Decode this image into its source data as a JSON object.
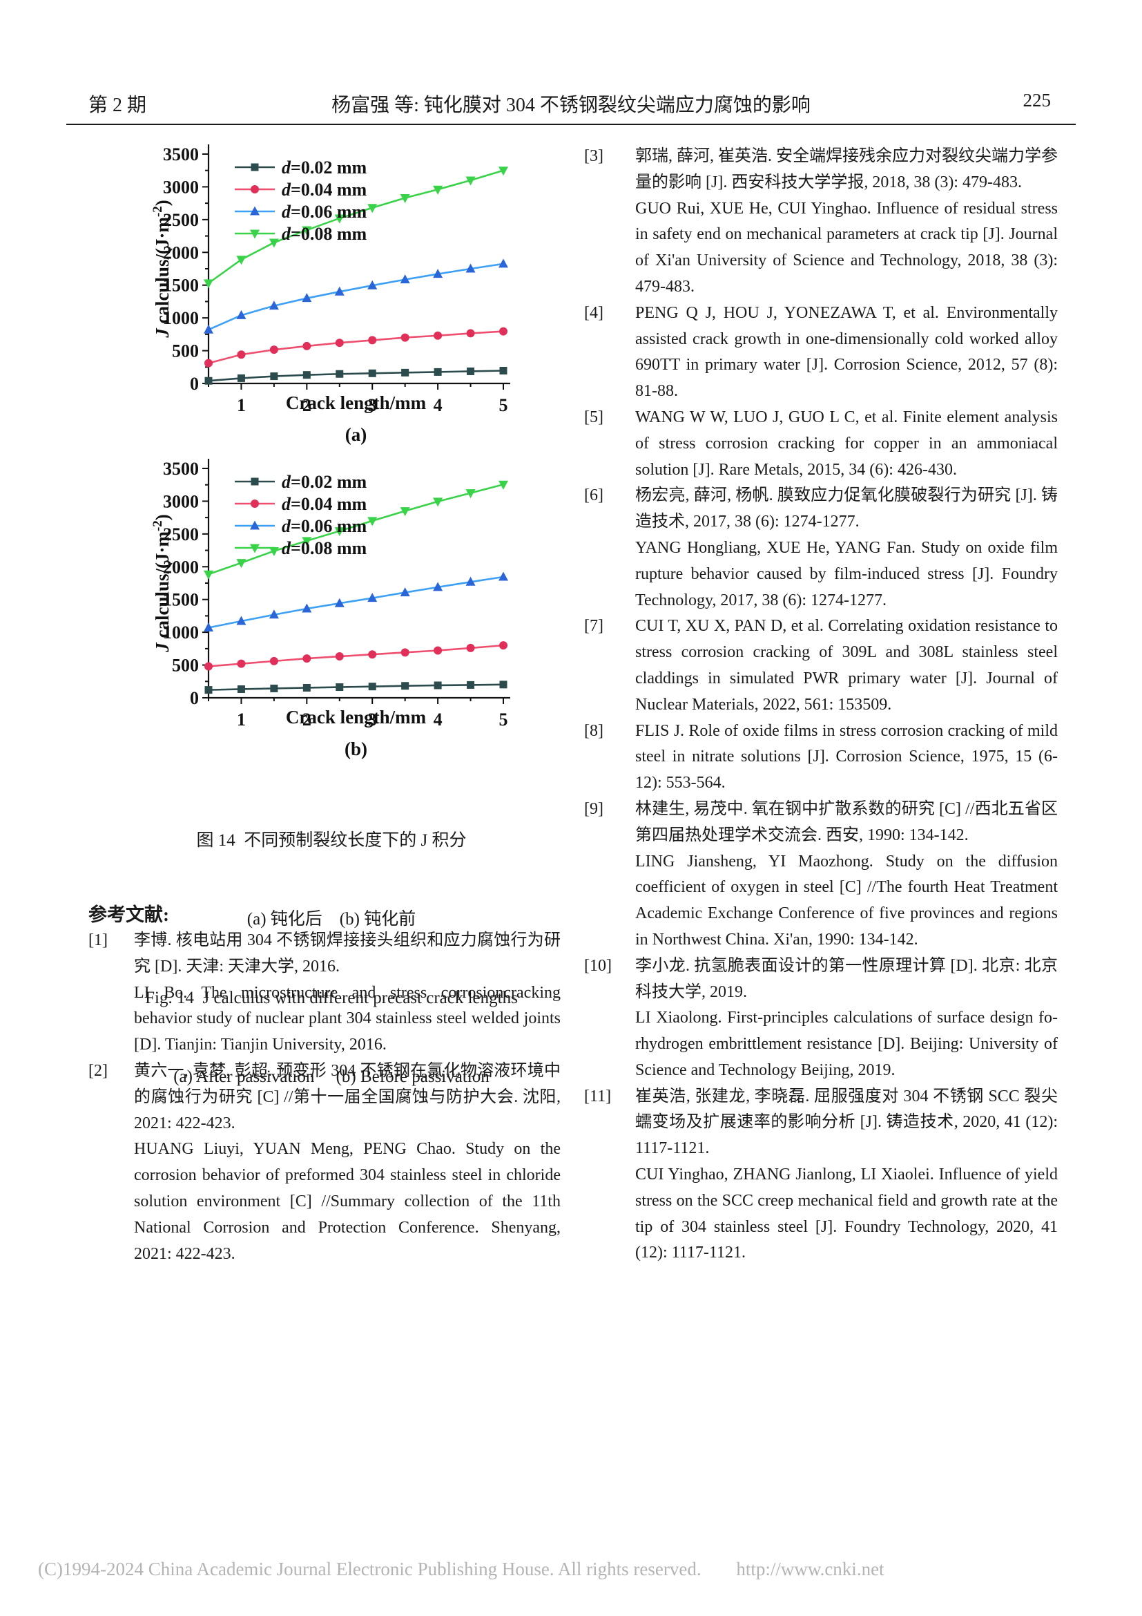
{
  "header": {
    "issue_label": "第 2 期",
    "running_title": "杨富强 等: 钝化膜对 304 不锈钢裂纹尖端应力腐蚀的影响",
    "page_number": "225"
  },
  "chart_data": [
    {
      "type": "line",
      "sub_label": "(a)",
      "xlabel": "Crack length/mm",
      "ylabel": "J calculus/(J·m⁻²)",
      "ylim": [
        0,
        3500
      ],
      "yticks": [
        0,
        500,
        1000,
        1500,
        2000,
        2500,
        3000,
        3500
      ],
      "xticks": [
        1,
        2,
        3,
        4,
        5
      ],
      "legend_position": "top-left",
      "grid": false,
      "x": [
        0.5,
        1,
        1.5,
        2,
        2.5,
        3,
        3.5,
        4,
        4.5,
        5
      ],
      "series": [
        {
          "name": "d=0.02 mm",
          "marker": "square",
          "color": "#2c4b4d",
          "line_color": "#2c4b4d",
          "values": [
            40,
            80,
            110,
            130,
            145,
            155,
            165,
            175,
            185,
            195
          ]
        },
        {
          "name": "d=0.04 mm",
          "marker": "circle",
          "color": "#e0305a",
          "line_color": "#ef4f6e",
          "values": [
            310,
            440,
            515,
            570,
            620,
            660,
            700,
            730,
            765,
            795
          ]
        },
        {
          "name": "d=0.06 mm",
          "marker": "triangle-up",
          "color": "#2b66d9",
          "line_color": "#3da0f5",
          "values": [
            820,
            1040,
            1185,
            1300,
            1400,
            1495,
            1585,
            1670,
            1750,
            1825
          ]
        },
        {
          "name": "d=0.08 mm",
          "marker": "triangle-down",
          "color": "#38d348",
          "line_color": "#38d348",
          "values": [
            1530,
            1890,
            2150,
            2340,
            2520,
            2680,
            2830,
            2960,
            3100,
            3250
          ]
        }
      ]
    },
    {
      "type": "line",
      "sub_label": "(b)",
      "xlabel": "Crack length/mm",
      "ylabel": "J calculus/(J·m⁻²)",
      "ylim": [
        0,
        3500
      ],
      "yticks": [
        0,
        500,
        1000,
        1500,
        2000,
        2500,
        3000,
        3500
      ],
      "xticks": [
        1,
        2,
        3,
        4,
        5
      ],
      "legend_position": "top-left",
      "grid": false,
      "x": [
        0.5,
        1,
        1.5,
        2,
        2.5,
        3,
        3.5,
        4,
        4.5,
        5
      ],
      "series": [
        {
          "name": "d=0.02 mm",
          "marker": "square",
          "color": "#2c4b4d",
          "line_color": "#2c4b4d",
          "values": [
            120,
            132,
            143,
            153,
            163,
            172,
            182,
            190,
            196,
            202
          ]
        },
        {
          "name": "d=0.04 mm",
          "marker": "circle",
          "color": "#e0305a",
          "line_color": "#ef4f6e",
          "values": [
            480,
            520,
            560,
            600,
            632,
            662,
            692,
            722,
            760,
            800
          ]
        },
        {
          "name": "d=0.06 mm",
          "marker": "triangle-up",
          "color": "#2b66d9",
          "line_color": "#3da0f5",
          "values": [
            1070,
            1170,
            1268,
            1360,
            1442,
            1522,
            1607,
            1688,
            1768,
            1845
          ]
        },
        {
          "name": "d=0.08 mm",
          "marker": "triangle-down",
          "color": "#38d348",
          "line_color": "#38d348",
          "values": [
            1885,
            2060,
            2240,
            2395,
            2545,
            2700,
            2850,
            2995,
            3125,
            3255
          ]
        }
      ]
    }
  ],
  "caption": {
    "zh_title": "图 14  不同预制裂纹长度下的 J 积分",
    "zh_sub": "(a) 钝化后    (b) 钝化前",
    "en_title": "Fig. 14  J calculus with different precast crack lengths",
    "en_sub": "(a) After passivation     (b) Before passivation"
  },
  "references": {
    "heading": "参考文献:",
    "left": [
      {
        "label": "[1]",
        "paras": [
          "李博. 核电站用 304 不锈钢焊接接头组织和应力腐蚀行为研究 [D]. 天津: 天津大学, 2016.",
          "LI Bo. The microstructure and stress corrosioncracking behavior study of nuclear plant 304 stainless steel welded joints [D]. Tianjin: Tianjin University, 2016."
        ]
      },
      {
        "label": "[2]",
        "paras": [
          "黄六一, 袁梦, 彭超. 预变形 304 不锈钢在氯化物溶液环境中的腐蚀行为研究 [C] //第十一届全国腐蚀与防护大会. 沈阳, 2021: 422-423.",
          "HUANG Liuyi, YUAN Meng, PENG Chao. Study on the corrosion behavior of preformed 304 stainless steel in chloride solution environment [C] //Summary collection of the 11th National Corrosion and Protection Conference. Shenyang, 2021: 422-423."
        ]
      }
    ],
    "right": [
      {
        "label": "[3]",
        "paras": [
          "郭瑞, 薛河, 崔英浩. 安全端焊接残余应力对裂纹尖端力学参量的影响 [J]. 西安科技大学学报, 2018, 38 (3): 479-483.",
          "GUO Rui, XUE He, CUI Yinghao. Influence of residual stress in safety end on mechanical parameters at crack tip [J]. Journal of Xi'an University of Science and Technology, 2018, 38 (3): 479-483."
        ]
      },
      {
        "label": "[4]",
        "paras": [
          "PENG Q J, HOU J, YONEZAWA T, et al. Environmentally assisted crack growth in one-dimensionally cold worked alloy 690TT in primary water [J]. Corrosion Science, 2012, 57 (8): 81-88."
        ]
      },
      {
        "label": "[5]",
        "paras": [
          "WANG W W, LUO J, GUO L C, et al. Finite element analysis of stress corrosion cracking for copper in an ammoniacal solution [J]. Rare Metals, 2015, 34 (6): 426-430."
        ]
      },
      {
        "label": "[6]",
        "paras": [
          "杨宏亮, 薛河, 杨帆. 膜致应力促氧化膜破裂行为研究 [J]. 铸造技术, 2017, 38 (6): 1274-1277.",
          "YANG Hongliang, XUE He, YANG Fan. Study on oxide film rupture behavior caused by film-induced stress [J]. Foundry Technology, 2017, 38 (6): 1274-1277."
        ]
      },
      {
        "label": "[7]",
        "paras": [
          "CUI T, XU X, PAN D, et al. Correlating oxidation resistance to stress corrosion cracking of 309L and 308L stainless steel claddings in simulated PWR primary water [J]. Journal of Nuclear Materials, 2022, 561: 153509."
        ]
      },
      {
        "label": "[8]",
        "paras": [
          "FLIS J. Role of oxide films in stress corrosion cracking of mild steel in nitrate solutions [J]. Corrosion Science, 1975, 15 (6-12): 553-564."
        ]
      },
      {
        "label": "[9]",
        "paras": [
          "林建生, 易茂中. 氧在钢中扩散系数的研究 [C] //西北五省区第四届热处理学术交流会. 西安, 1990: 134-142.",
          "LING Jiansheng, YI Maozhong. Study on the diffusion coefficient of oxygen in steel [C] //The fourth Heat Treatment Academic Exchange Conference of five provinces and regions in Northwest China. Xi'an, 1990: 134-142."
        ]
      },
      {
        "label": "[10]",
        "paras": [
          "李小龙. 抗氢脆表面设计的第一性原理计算 [D]. 北京: 北京科技大学, 2019.",
          "LI Xiaolong. First-principles calculations of surface design fo-rhydrogen embrittlement resistance [D]. Beijing: University of Science and Technology Beijing, 2019."
        ]
      },
      {
        "label": "[11]",
        "paras": [
          "崔英浩, 张建龙, 李晓磊. 屈服强度对 304 不锈钢 SCC 裂尖蠕变场及扩展速率的影响分析 [J]. 铸造技术, 2020, 41 (12): 1117-1121.",
          "CUI Yinghao, ZHANG Jianlong, LI Xiaolei. Influence of yield stress on the SCC creep mechanical field and growth rate at the tip of 304 stainless steel [J]. Foundry Technology, 2020, 41 (12): 1117-1121."
        ]
      }
    ]
  },
  "footer": {
    "copyright": "(C)1994-2024 China Academic Journal Electronic Publishing House. All rights reserved.",
    "url": "http://www.cnki.net"
  }
}
